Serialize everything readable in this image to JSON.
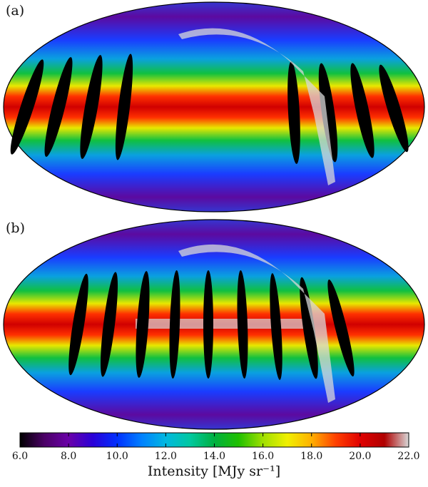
{
  "chart_data": {
    "type": "map",
    "panels": [
      {
        "label": "(a)"
      },
      {
        "label": "(b)"
      }
    ],
    "colorbar": {
      "title": "Intensity [MJy sr⁻¹]",
      "lim": [
        6,
        22
      ],
      "ticks": [
        {
          "value": 6,
          "label": "6.0"
        },
        {
          "value": 8,
          "label": "8.0"
        },
        {
          "value": 10,
          "label": "10.0"
        },
        {
          "value": 12,
          "label": "12.0"
        },
        {
          "value": 14,
          "label": "14.0"
        },
        {
          "value": 16,
          "label": "16.0"
        },
        {
          "value": 18,
          "label": "18.0"
        },
        {
          "value": 20,
          "label": "20.0"
        },
        {
          "value": 22,
          "label": "22.0"
        }
      ],
      "colors": [
        "#000000",
        "#4b0066",
        "#6a00a8",
        "#2a00d8",
        "#0030ff",
        "#0080ff",
        "#00b8e0",
        "#00c8a0",
        "#00b040",
        "#20c000",
        "#a0e000",
        "#f0f000",
        "#ffb000",
        "#ff4000",
        "#e00000",
        "#b00000",
        "#d8d8d8"
      ]
    }
  }
}
